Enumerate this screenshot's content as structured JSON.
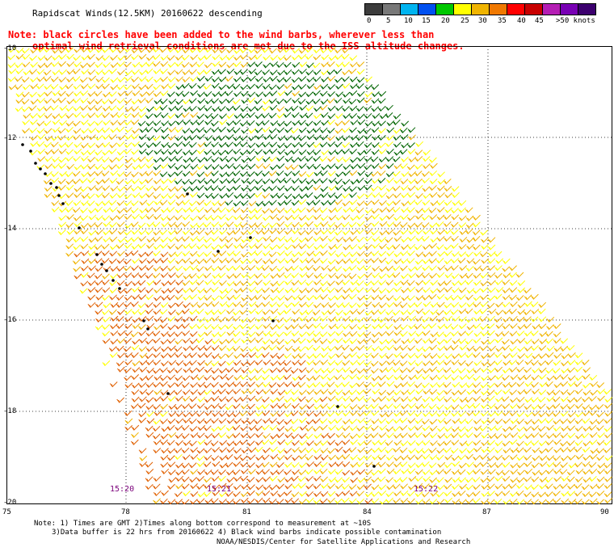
{
  "header": {
    "title": "Rapidscat Winds(12.5KM) 20160622 descending",
    "note_line1": "Note: black circles have been added to the wind barbs, wherever less than",
    "note_line2": "optimal wind retrieval conditions are met due to the ISS altitude changes."
  },
  "legend": {
    "units": "knots",
    "labels": [
      "0",
      "5",
      "10",
      "15",
      "20",
      "25",
      "30",
      "35",
      "40",
      "45",
      ">50 knots"
    ],
    "colors": [
      "#3c3c3c",
      "#787878",
      "#00b4f0",
      "#0050f0",
      "#00c800",
      "#ffff00",
      "#f0b400",
      "#f07800",
      "#ff0000",
      "#c80000",
      "#b41eb4",
      "#7800b4",
      "#3c006e"
    ]
  },
  "map": {
    "lat_labels": [
      "-10",
      "-12",
      "-14",
      "-16",
      "-18",
      "-20"
    ],
    "lon_labels": [
      "75",
      "78",
      "81",
      "84",
      "87",
      "90"
    ],
    "pass_times": [
      "15:20",
      "15:21",
      "15:22"
    ],
    "colors": {
      "calm": "#006400",
      "light": "#ffff00",
      "moderate": "#f0b400",
      "strong": "#e06000",
      "rain_flag": "#000000"
    }
  },
  "footer": {
    "note1": "Note: 1) Times are GMT 2)Times along bottom correspond to measurement at ~10S",
    "note2": "3)Data buffer is 22 hrs from 20160622 4) Black wind barbs indicate possible contamination",
    "credit": "NOAA/NESDIS/Center for Satellite Applications and Research"
  }
}
